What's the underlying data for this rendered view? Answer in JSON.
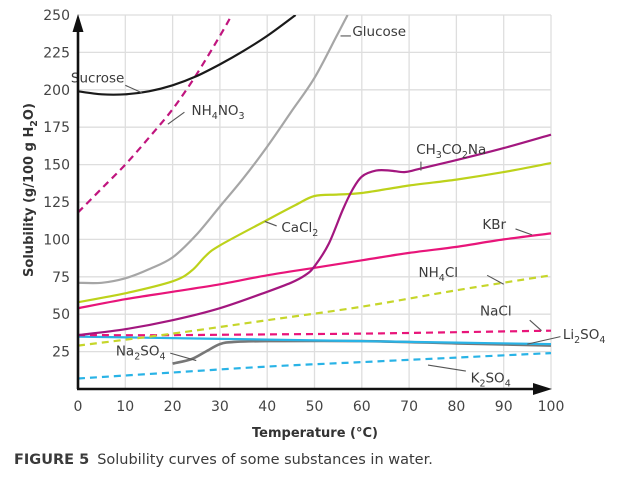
{
  "chart_data": {
    "type": "line",
    "title": "",
    "xlabel": "Temperature (°C)",
    "ylabel": "Solubility (g/100 g H₂O)",
    "xlim": [
      0,
      100
    ],
    "ylim": [
      0,
      250
    ],
    "x_ticks": [
      0,
      10,
      20,
      30,
      40,
      50,
      60,
      70,
      80,
      90,
      100
    ],
    "y_ticks": [
      25,
      50,
      75,
      100,
      125,
      150,
      175,
      200,
      225,
      250
    ],
    "grid": true,
    "legend": "inline labels with leader lines",
    "series": [
      {
        "name": "Sucrose",
        "label_sub": "Sucrose",
        "color": "#1a1a1a",
        "dashed": false,
        "points": [
          [
            0,
            199
          ],
          [
            5,
            197
          ],
          [
            10,
            197
          ],
          [
            15,
            199
          ],
          [
            20,
            203
          ],
          [
            25,
            209
          ],
          [
            30,
            217
          ],
          [
            35,
            226
          ],
          [
            40,
            236
          ],
          [
            46,
            250
          ]
        ]
      },
      {
        "name": "NH4NO3",
        "label_parts": [
          [
            "NH",
            ""
          ],
          [
            "4",
            "sub"
          ],
          [
            "NO",
            ""
          ],
          [
            "3",
            "sub"
          ]
        ],
        "color": "#c0157e",
        "dashed": true,
        "points": [
          [
            0,
            118
          ],
          [
            5,
            134
          ],
          [
            10,
            150
          ],
          [
            15,
            168
          ],
          [
            20,
            187
          ],
          [
            25,
            210
          ],
          [
            30,
            236
          ],
          [
            32.5,
            250
          ]
        ]
      },
      {
        "name": "Glucose",
        "color": "#a6a6a6",
        "dashed": false,
        "points": [
          [
            0,
            71
          ],
          [
            5,
            71
          ],
          [
            10,
            74
          ],
          [
            15,
            80
          ],
          [
            20,
            88
          ],
          [
            25,
            103
          ],
          [
            30,
            122
          ],
          [
            35,
            141
          ],
          [
            40,
            162
          ],
          [
            45,
            185
          ],
          [
            50,
            208
          ],
          [
            55,
            238
          ],
          [
            57,
            250
          ]
        ]
      },
      {
        "name": "CH3CO2Na",
        "label_parts": [
          [
            "CH",
            ""
          ],
          [
            "3",
            "sub"
          ],
          [
            "CO",
            ""
          ],
          [
            "2",
            "sub"
          ],
          [
            "Na",
            ""
          ]
        ],
        "color": "#a3177f",
        "dashed": false,
        "points": [
          [
            0,
            36
          ],
          [
            10,
            40
          ],
          [
            20,
            46
          ],
          [
            30,
            54
          ],
          [
            40,
            65
          ],
          [
            45,
            71
          ],
          [
            48,
            76
          ],
          [
            50,
            82
          ],
          [
            53,
            97
          ],
          [
            56,
            120
          ],
          [
            58,
            133
          ],
          [
            60,
            142
          ],
          [
            63,
            146
          ],
          [
            66,
            146
          ],
          [
            69,
            145
          ],
          [
            72,
            147
          ],
          [
            80,
            153
          ],
          [
            90,
            161
          ],
          [
            100,
            170
          ]
        ]
      },
      {
        "name": "CaCl2",
        "label_parts": [
          [
            "CaCl",
            ""
          ],
          [
            "2",
            "sub"
          ]
        ],
        "color": "#bdd21b",
        "dashed": false,
        "points": [
          [
            0,
            58
          ],
          [
            10,
            64
          ],
          [
            20,
            72
          ],
          [
            24,
            79
          ],
          [
            27,
            89
          ],
          [
            30,
            96
          ],
          [
            40,
            113
          ],
          [
            46,
            123
          ],
          [
            50,
            129
          ],
          [
            55,
            130
          ],
          [
            60,
            131
          ],
          [
            70,
            136
          ],
          [
            80,
            140
          ],
          [
            90,
            145
          ],
          [
            100,
            151
          ]
        ]
      },
      {
        "name": "KBr",
        "color": "#e8157a",
        "dashed": false,
        "points": [
          [
            0,
            54
          ],
          [
            10,
            60
          ],
          [
            20,
            65
          ],
          [
            30,
            70
          ],
          [
            40,
            76
          ],
          [
            50,
            81
          ],
          [
            60,
            86
          ],
          [
            70,
            91
          ],
          [
            80,
            95
          ],
          [
            90,
            100
          ],
          [
            100,
            104
          ]
        ]
      },
      {
        "name": "NH4Cl",
        "label_parts": [
          [
            "NH",
            ""
          ],
          [
            "4",
            "sub"
          ],
          [
            "Cl",
            ""
          ]
        ],
        "color": "#c6d62b",
        "dashed": true,
        "points": [
          [
            0,
            29
          ],
          [
            20,
            37
          ],
          [
            40,
            46
          ],
          [
            60,
            55
          ],
          [
            80,
            66
          ],
          [
            100,
            76
          ]
        ]
      },
      {
        "name": "NaCl",
        "color": "#e8157a",
        "dashed": true,
        "points": [
          [
            0,
            36
          ],
          [
            20,
            36
          ],
          [
            40,
            36.5
          ],
          [
            60,
            37
          ],
          [
            80,
            38
          ],
          [
            100,
            39
          ]
        ]
      },
      {
        "name": "Li2SO4",
        "label_parts": [
          [
            "Li",
            ""
          ],
          [
            "2",
            "sub"
          ],
          [
            "SO",
            ""
          ],
          [
            "4",
            "sub"
          ]
        ],
        "color": "#29b3e6",
        "dashed": false,
        "points": [
          [
            0,
            35
          ],
          [
            20,
            34
          ],
          [
            40,
            33
          ],
          [
            60,
            32
          ],
          [
            80,
            31
          ],
          [
            100,
            30
          ]
        ]
      },
      {
        "name": "Na2SO4",
        "label_parts": [
          [
            "Na",
            ""
          ],
          [
            "2",
            "sub"
          ],
          [
            "SO",
            ""
          ],
          [
            "4",
            "sub"
          ]
        ],
        "color": "#777777",
        "dashed": false,
        "points": [
          [
            20,
            17
          ],
          [
            24,
            20
          ],
          [
            27,
            25
          ],
          [
            30,
            30
          ],
          [
            33,
            31.5
          ],
          [
            40,
            32
          ],
          [
            60,
            32
          ],
          [
            80,
            30.5
          ],
          [
            100,
            29
          ]
        ]
      },
      {
        "name": "K2SO4",
        "label_parts": [
          [
            "K",
            ""
          ],
          [
            "2",
            "sub"
          ],
          [
            "SO",
            ""
          ],
          [
            "4",
            "sub"
          ]
        ],
        "color": "#29b3e6",
        "dashed": true,
        "points": [
          [
            0,
            7
          ],
          [
            20,
            11
          ],
          [
            40,
            15
          ],
          [
            60,
            18
          ],
          [
            80,
            21
          ],
          [
            100,
            24
          ]
        ]
      }
    ],
    "labels": [
      {
        "series": "Sucrose",
        "text_parts": [
          [
            "Sucrose",
            ""
          ]
        ],
        "at": [
          -1.5,
          205
        ],
        "leader": [
          [
            10,
            203
          ],
          [
            13.5,
            198
          ]
        ]
      },
      {
        "series": "NH4NO3",
        "text_parts": [
          [
            "NH",
            ""
          ],
          [
            "4",
            "sub"
          ],
          [
            "NO",
            ""
          ],
          [
            "3",
            "sub"
          ]
        ],
        "at": [
          24,
          183
        ],
        "leader": [
          [
            22.5,
            185
          ],
          [
            19,
            177
          ]
        ]
      },
      {
        "series": "Glucose",
        "text_parts": [
          [
            "Glucose",
            ""
          ]
        ],
        "at": [
          58,
          236
        ],
        "leader": [
          [
            57.7,
            236
          ],
          [
            55.5,
            236
          ]
        ]
      },
      {
        "series": "CH3CO2Na",
        "text_parts": [
          [
            "CH",
            ""
          ],
          [
            "3",
            "sub"
          ],
          [
            "CO",
            ""
          ],
          [
            "2",
            "sub"
          ],
          [
            "Na",
            ""
          ]
        ],
        "at": [
          71.5,
          157
        ],
        "leader": [
          [
            72.5,
            152
          ],
          [
            72.5,
            146
          ]
        ]
      },
      {
        "series": "CaCl2",
        "text_parts": [
          [
            "CaCl",
            ""
          ],
          [
            "2",
            "sub"
          ]
        ],
        "at": [
          43,
          105
        ],
        "leader": [
          [
            42,
            109
          ],
          [
            39.5,
            112
          ]
        ]
      },
      {
        "series": "KBr",
        "text_parts": [
          [
            "KBr",
            ""
          ]
        ],
        "at": [
          85.5,
          107
        ],
        "leader": [
          [
            92.5,
            107
          ],
          [
            96,
            103
          ]
        ]
      },
      {
        "series": "NH4Cl",
        "text_parts": [
          [
            "NH",
            ""
          ],
          [
            "4",
            "sub"
          ],
          [
            "Cl",
            ""
          ]
        ],
        "at": [
          72,
          75
        ],
        "leader": [
          [
            86.5,
            76
          ],
          [
            90,
            70
          ]
        ]
      },
      {
        "series": "NaCl",
        "text_parts": [
          [
            "NaCl",
            ""
          ]
        ],
        "at": [
          85,
          49
        ],
        "leader": [
          [
            95.5,
            46
          ],
          [
            98,
            39
          ]
        ]
      },
      {
        "series": "Li2SO4",
        "text_parts": [
          [
            "Li",
            ""
          ],
          [
            "2",
            "sub"
          ],
          [
            "SO",
            ""
          ],
          [
            "4",
            "sub"
          ]
        ],
        "at": [
          102.5,
          33.5
        ],
        "leader": [
          [
            102,
            35
          ],
          [
            95,
            30
          ]
        ]
      },
      {
        "series": "Na2SO4",
        "text_parts": [
          [
            "Na",
            ""
          ],
          [
            "2",
            "sub"
          ],
          [
            "SO",
            ""
          ],
          [
            "4",
            "sub"
          ]
        ],
        "at": [
          8,
          22.5
        ],
        "leader": [
          [
            19.5,
            24
          ],
          [
            25,
            19
          ]
        ]
      },
      {
        "series": "K2SO4",
        "text_parts": [
          [
            "K",
            ""
          ],
          [
            "2",
            "sub"
          ],
          [
            "SO",
            ""
          ],
          [
            "4",
            "sub"
          ]
        ],
        "at": [
          83,
          4.5
        ],
        "leader": [
          [
            82,
            12
          ],
          [
            74,
            16
          ]
        ]
      }
    ]
  },
  "caption": {
    "figure_label": "FIGURE 5",
    "text": "Solubility curves of some substances in water."
  }
}
